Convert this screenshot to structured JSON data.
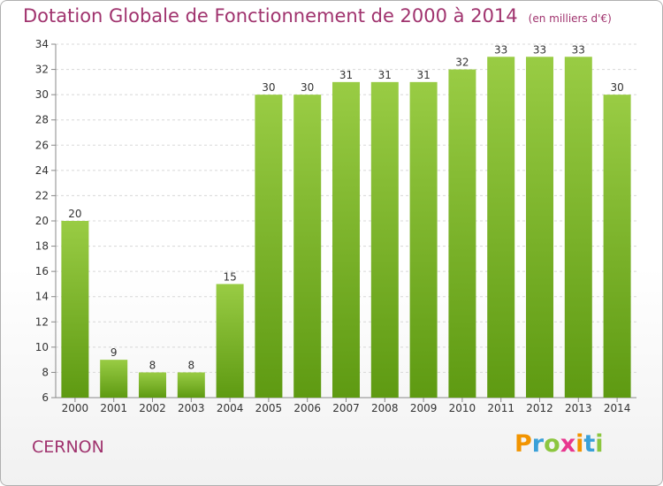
{
  "chart_data": {
    "type": "bar",
    "title": "Dotation Globale de Fonctionnement de 2000 à 2014",
    "subtitle": "(en milliers d'€)",
    "categories": [
      "2000",
      "2001",
      "2002",
      "2003",
      "2004",
      "2005",
      "2006",
      "2007",
      "2008",
      "2009",
      "2010",
      "2011",
      "2012",
      "2013",
      "2014"
    ],
    "values": [
      20,
      9,
      8,
      8,
      15,
      30,
      30,
      31,
      31,
      31,
      32,
      33,
      33,
      33,
      30
    ],
    "ylim": [
      6,
      34
    ],
    "yticks": [
      6,
      8,
      10,
      12,
      14,
      16,
      18,
      20,
      22,
      24,
      26,
      28,
      30,
      32,
      34
    ],
    "grid": true,
    "colors": {
      "bar_top": "#99cc44",
      "bar_bottom": "#5e9a12",
      "text": "#a0336e"
    }
  },
  "footer": {
    "commune": "CERNON"
  },
  "logo": {
    "text": "Proxiti",
    "letters": [
      "P",
      "r",
      "o",
      "x",
      "i",
      "t",
      "i"
    ],
    "colors": [
      "#f29400",
      "#3aa0d8",
      "#8cc63f",
      "#e8368f",
      "#f29400",
      "#3aa0d8",
      "#8cc63f"
    ]
  }
}
